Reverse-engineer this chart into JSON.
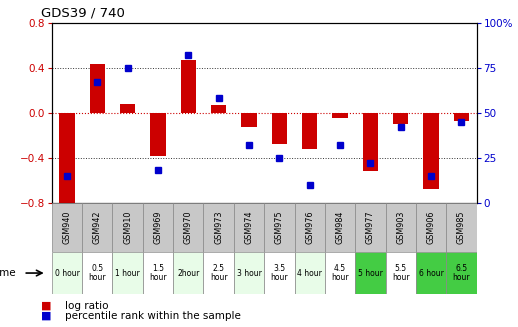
{
  "title": "GDS39 / 740",
  "samples": [
    "GSM940",
    "GSM942",
    "GSM910",
    "GSM969",
    "GSM970",
    "GSM973",
    "GSM974",
    "GSM975",
    "GSM976",
    "GSM984",
    "GSM977",
    "GSM903",
    "GSM906",
    "GSM985"
  ],
  "time_labels": [
    "0 hour",
    "0.5\nhour",
    "1 hour",
    "1.5\nhour",
    "2hour",
    "2.5\nhour",
    "3 hour",
    "3.5\nhour",
    "4 hour",
    "4.5\nhour",
    "5 hour",
    "5.5\nhour",
    "6 hour",
    "6.5\nhour"
  ],
  "time_colors": [
    "#e8fce8",
    "#ffffff",
    "#e8fce8",
    "#ffffff",
    "#e8fce8",
    "#ffffff",
    "#e8fce8",
    "#ffffff",
    "#e8fce8",
    "#ffffff",
    "#44cc44",
    "#ffffff",
    "#44cc44",
    "#44cc44"
  ],
  "log_ratio": [
    -0.82,
    0.43,
    0.08,
    -0.38,
    0.47,
    0.07,
    -0.13,
    -0.28,
    -0.32,
    -0.05,
    -0.52,
    -0.1,
    -0.68,
    -0.07
  ],
  "percentile": [
    15,
    67,
    75,
    18,
    82,
    58,
    32,
    25,
    10,
    32,
    22,
    42,
    15,
    45
  ],
  "ylim_left": [
    -0.8,
    0.8
  ],
  "ylim_right": [
    0,
    100
  ],
  "yticks_left": [
    -0.8,
    -0.4,
    0,
    0.4,
    0.8
  ],
  "yticks_right": [
    0,
    25,
    50,
    75,
    100
  ],
  "bar_color": "#cc0000",
  "dot_color": "#0000cc",
  "zero_line_color": "#cc0000",
  "grid_color": "#333333",
  "header_bg": "#c8c8c8",
  "bg_color": "#ffffff",
  "plot_bg": "#ffffff"
}
